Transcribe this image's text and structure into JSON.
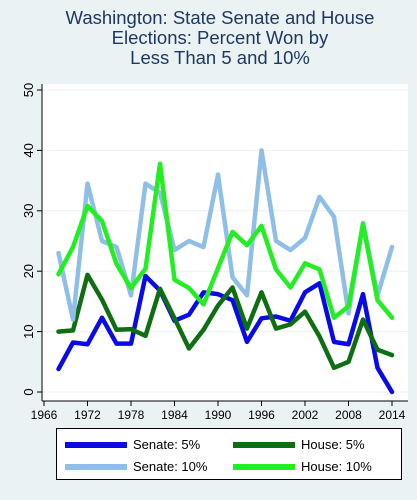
{
  "chart_data": {
    "type": "line",
    "title_lines": [
      "Washington: State Senate and House",
      "Elections: Percent Won by",
      "Less Than 5 and 10%"
    ],
    "x": [
      1968,
      1970,
      1972,
      1974,
      1976,
      1978,
      1980,
      1982,
      1984,
      1986,
      1988,
      1990,
      1992,
      1994,
      1996,
      1998,
      2000,
      2002,
      2004,
      2006,
      2008,
      2010,
      2012,
      2014
    ],
    "xticks": [
      1966,
      1972,
      1978,
      1984,
      1990,
      1996,
      2002,
      2008,
      2014
    ],
    "yticks": [
      0,
      10,
      20,
      30,
      40,
      50
    ],
    "xlim": [
      1966,
      2014
    ],
    "ylim": [
      0,
      50
    ],
    "grid": true,
    "legend_position": "bottom",
    "series": [
      {
        "name": "Senate: 5%",
        "color": "#0a0ae6",
        "values": [
          3.8,
          8.2,
          7.9,
          12.3,
          8.0,
          8.0,
          19.2,
          16.8,
          11.8,
          12.8,
          16.5,
          16.2,
          15.2,
          8.3,
          12.2,
          12.5,
          11.8,
          16.5,
          18.0,
          8.3,
          7.9,
          16.2,
          4.0,
          0
        ]
      },
      {
        "name": "House: 5%",
        "color": "#0e6e12",
        "values": [
          10.0,
          10.2,
          19.4,
          15.3,
          10.3,
          10.4,
          9.3,
          17.1,
          12.2,
          7.2,
          10.3,
          14.3,
          17.3,
          10.5,
          16.5,
          10.5,
          11.2,
          13.3,
          9.2,
          4.0,
          5.0,
          12.0,
          7.0,
          6.1
        ]
      },
      {
        "name": "Senate: 10%",
        "color": "#8fbfe6",
        "values": [
          23.0,
          12.0,
          34.5,
          25.0,
          24.0,
          16.0,
          34.5,
          33.0,
          23.5,
          25.0,
          24.0,
          36.0,
          19.0,
          16.0,
          40.0,
          25.0,
          23.5,
          25.5,
          32.3,
          29.0,
          13.0,
          28.0,
          16.0,
          24.0
        ]
      },
      {
        "name": "House: 10%",
        "color": "#22ee22",
        "values": [
          19.5,
          24.0,
          30.8,
          28.3,
          21.2,
          17.2,
          20.4,
          37.8,
          18.6,
          17.2,
          14.5,
          20.5,
          26.5,
          24.3,
          27.5,
          20.3,
          17.3,
          21.3,
          20.3,
          12.3,
          14.2,
          27.8,
          15.2,
          12.3
        ]
      }
    ]
  }
}
